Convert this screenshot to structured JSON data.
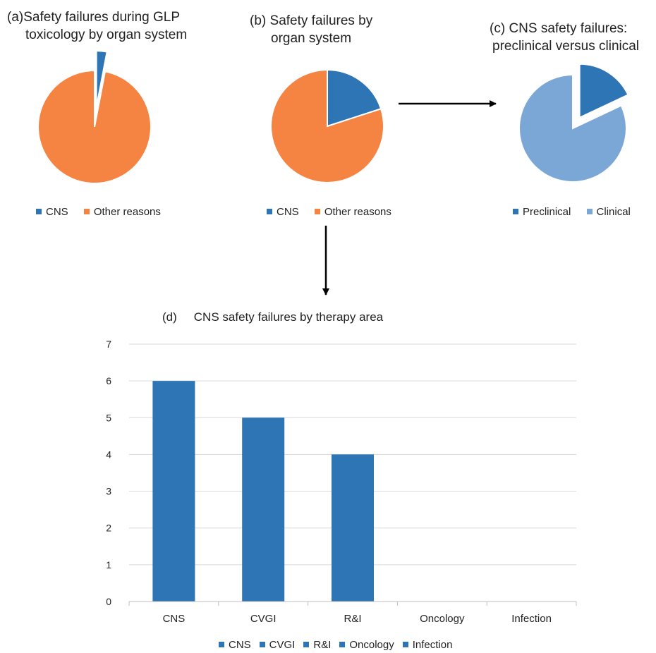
{
  "colors": {
    "cns_blue": "#2e75b6",
    "other_orange": "#f58442",
    "clinical_light_blue": "#7ba7d6",
    "arrow": "#000000",
    "grid": "#d9d9d9"
  },
  "chart_data": [
    {
      "id": "a",
      "type": "pie",
      "panel_label": "(a)",
      "title_line1": "Safety failures during GLP",
      "title_line2": "toxicology by organ system",
      "categories": [
        "CNS",
        "Other reasons"
      ],
      "values": [
        3,
        97
      ],
      "exploded": "CNS",
      "colors": [
        "#2e75b6",
        "#f58442"
      ],
      "legend_position": "bottom"
    },
    {
      "id": "b",
      "type": "pie",
      "panel_label": "(b)",
      "title_line1": "Safety failures by",
      "title_line2": "organ system",
      "categories": [
        "CNS",
        "Other reasons"
      ],
      "values": [
        20,
        80
      ],
      "colors": [
        "#2e75b6",
        "#f58442"
      ],
      "legend_position": "bottom"
    },
    {
      "id": "c",
      "type": "pie",
      "panel_label": "(c)",
      "title_line1": "CNS safety failures:",
      "title_line2": "preclinical versus clinical",
      "categories": [
        "Preclinical",
        "Clinical"
      ],
      "values": [
        18,
        82
      ],
      "exploded": "Preclinical",
      "colors": [
        "#2e75b6",
        "#7ba7d6"
      ],
      "legend_position": "bottom"
    },
    {
      "id": "d",
      "type": "bar",
      "panel_label": "(d)",
      "title": "CNS safety failures by therapy area",
      "categories": [
        "CNS",
        "CVGI",
        "R&I",
        "Oncology",
        "Infection"
      ],
      "values": [
        6,
        5,
        4,
        0,
        0
      ],
      "ylim": [
        0,
        7
      ],
      "yticks": [
        "0",
        "1",
        "2",
        "3",
        "4",
        "5",
        "6",
        "7"
      ],
      "grid": true,
      "legend_position": "bottom",
      "legend": [
        "CNS",
        "CVGI",
        "R&I",
        "Oncology",
        "Infection"
      ],
      "color": "#2e75b6"
    }
  ]
}
